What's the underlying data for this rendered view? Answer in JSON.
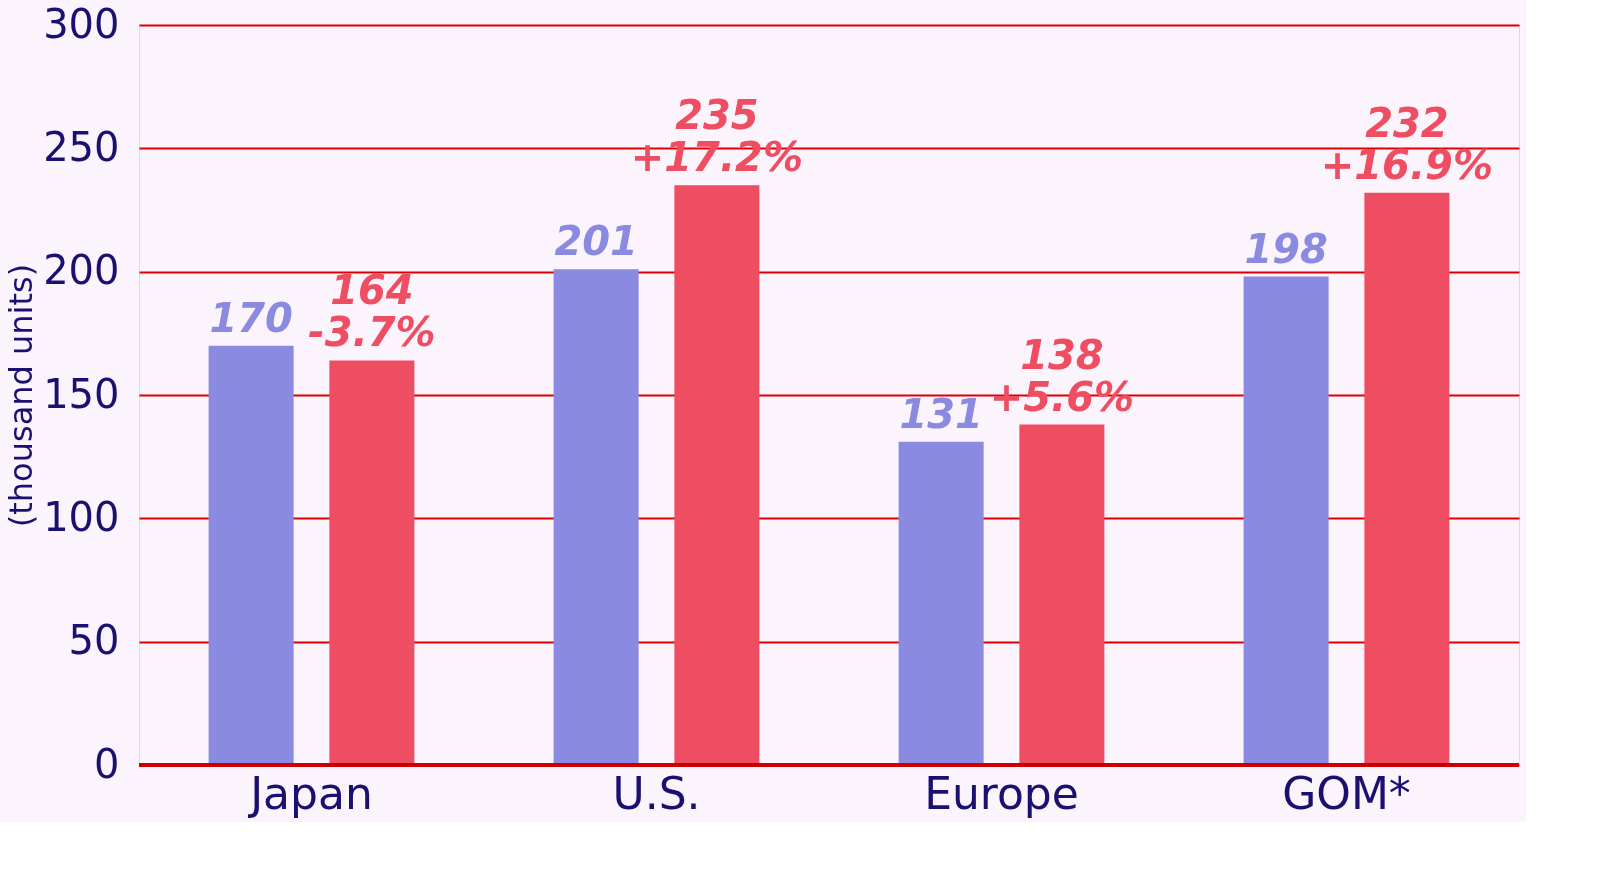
{
  "chart_data": {
    "type": "bar",
    "ylabel": "(thousand units)",
    "categories": [
      "Japan",
      "U.S.",
      "Europe",
      "GOM*"
    ],
    "series": [
      {
        "color": "#8a8ae0",
        "values": [
          170,
          201,
          131,
          198
        ],
        "value_labels": [
          "170",
          "201",
          "131",
          "198"
        ]
      },
      {
        "color": "#ee4d62",
        "values": [
          164,
          235,
          138,
          232
        ],
        "value_labels": [
          "164\n-3.7%",
          "235\n+17.2%",
          "138\n+5.6%",
          "232\n+16.9%"
        ]
      }
    ],
    "ylim": [
      0,
      300
    ],
    "yticks": [
      0,
      50,
      100,
      150,
      200,
      250,
      300
    ],
    "grid": "y"
  }
}
